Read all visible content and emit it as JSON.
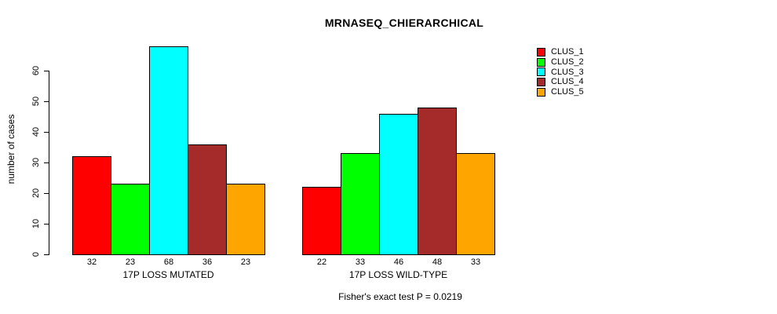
{
  "chart_data": {
    "type": "bar",
    "title": "MRNASEQ_CHIERARCHICAL",
    "ylabel": "number of cases",
    "xlabel": "",
    "ylim": [
      0,
      60
    ],
    "yticks": [
      0,
      10,
      20,
      30,
      40,
      50,
      60
    ],
    "grid": false,
    "legend_position": "right",
    "series": [
      {
        "name": "CLUS_1",
        "color": "#ff0000"
      },
      {
        "name": "CLUS_2",
        "color": "#00ff00"
      },
      {
        "name": "CLUS_3",
        "color": "#00ffff"
      },
      {
        "name": "CLUS_4",
        "color": "#a52a2a"
      },
      {
        "name": "CLUS_5",
        "color": "#ffa500"
      }
    ],
    "groups": [
      {
        "label": "17P LOSS MUTATED",
        "values": [
          32,
          23,
          68,
          36,
          23
        ]
      },
      {
        "label": "17P LOSS WILD-TYPE",
        "values": [
          22,
          33,
          46,
          48,
          33
        ]
      }
    ],
    "caption": "Fisher's exact test P = 0.0219"
  }
}
